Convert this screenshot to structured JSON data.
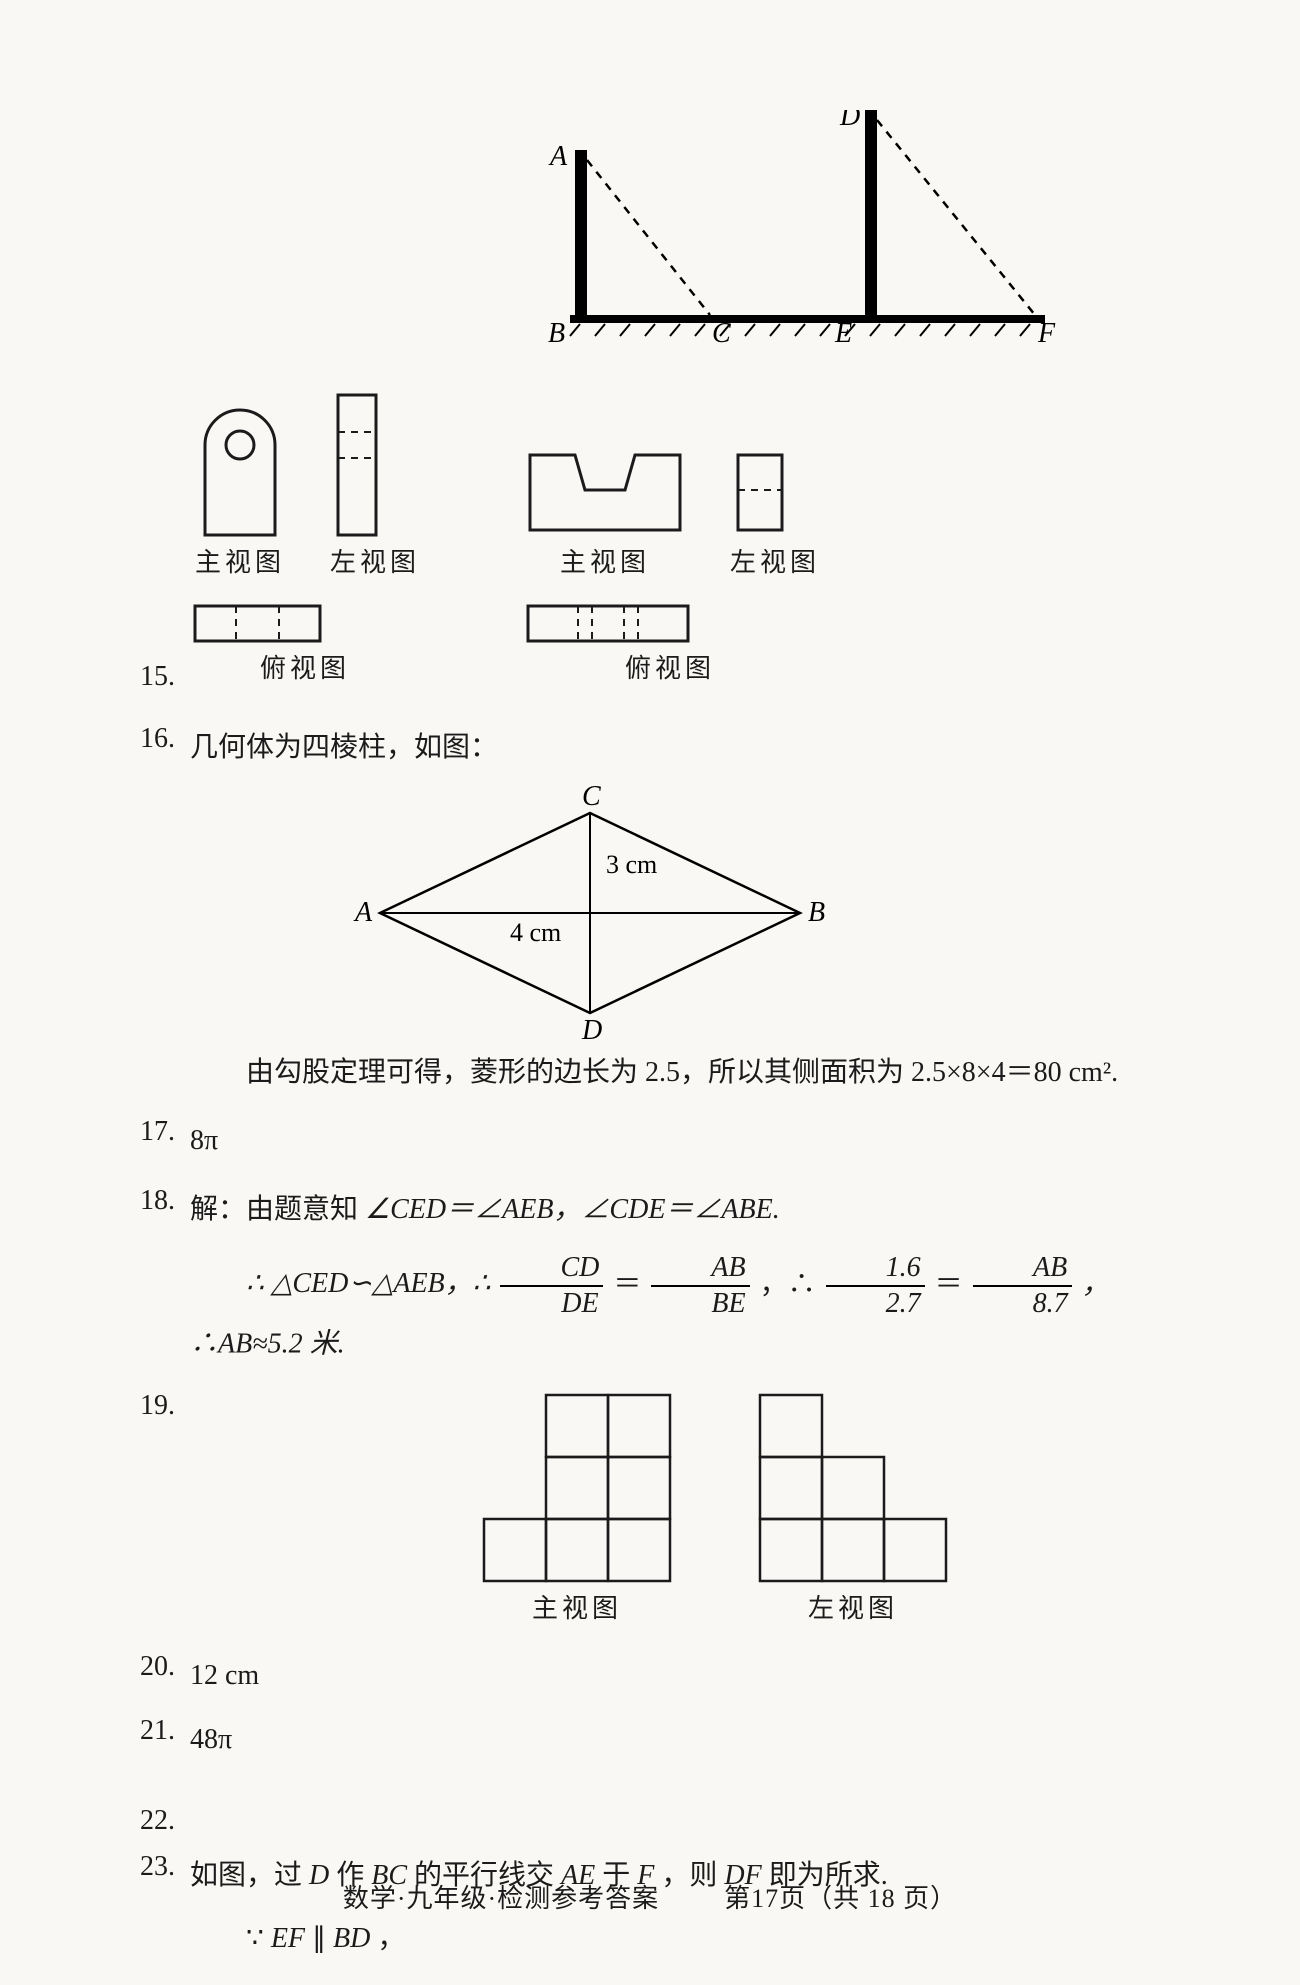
{
  "top_diagram": {
    "labels": {
      "A": "A",
      "B": "B",
      "C": "C",
      "D": "D",
      "E": "E",
      "F": "F"
    },
    "stroke": "#000000",
    "thick": 10,
    "dash": "8,7",
    "ground_hatches": 18
  },
  "q15": {
    "num": "15.",
    "labels": {
      "front": "主视图",
      "left": "左视图",
      "top": "俯视图"
    },
    "stroke": "#1b1b1b",
    "dash": "7,6"
  },
  "q16": {
    "num": "16.",
    "text_intro": "几何体为四棱柱，如图：",
    "rhombus": {
      "labels": {
        "A": "A",
        "B": "B",
        "C": "C",
        "D": "D"
      },
      "diag_h_label": "4 cm",
      "diag_v_label": "3 cm",
      "stroke": "#000000"
    },
    "text_after": "由勾股定理可得，菱形的边长为 2.5，所以其侧面积为 2.5×8×4＝80 cm²."
  },
  "q17": {
    "num": "17.",
    "text": "8π"
  },
  "q18": {
    "num": "18.",
    "line1_pre": "解：由题意知",
    "eq1": "∠CED＝∠AEB，∠CDE＝∠ABE.",
    "therefore": "∴ △CED∽△AEB，∴",
    "frac1": {
      "num": "CD",
      "den": "DE"
    },
    "frac2": {
      "num": "AB",
      "den": "BE"
    },
    "frac3": {
      "num": "1.6",
      "den": "2.7"
    },
    "frac4": {
      "num": "AB",
      "den": "8.7"
    },
    "tail": "，∴AB≈5.2 米."
  },
  "q19": {
    "num": "19.",
    "labels": {
      "front": "主视图",
      "left": "左视图"
    },
    "cell": 62,
    "stroke": "#1b1b1b",
    "front_cells": [
      [
        0,
        1
      ],
      [
        0,
        2
      ],
      [
        1,
        1
      ],
      [
        1,
        2
      ],
      [
        2,
        0
      ],
      [
        2,
        1
      ],
      [
        2,
        2
      ]
    ],
    "left_cells": [
      [
        0,
        0
      ],
      [
        1,
        0
      ],
      [
        1,
        1
      ],
      [
        2,
        0
      ],
      [
        2,
        1
      ],
      [
        2,
        2
      ]
    ],
    "front_cols": 3,
    "front_rows": 3,
    "left_cols": 3,
    "left_rows": 3
  },
  "q20": {
    "num": "20.",
    "text": "12 cm"
  },
  "q21": {
    "num": "21.",
    "text": "48π"
  },
  "q22": {
    "num": "22."
  },
  "q23": {
    "num": "23.",
    "line1_pre": "如图，过 ",
    "line1_mid1": "D",
    "line1_mid2": " 作 ",
    "line1_mid3": "BC",
    "line1_mid4": " 的平行线交 ",
    "line1_mid5": "AE",
    "line1_mid6": " 于 ",
    "line1_mid7": "F",
    "line1_mid8": "，则 ",
    "line1_mid9": "DF",
    "line1_tail": " 即为所求.",
    "line2_pre": "∵",
    "line2_ef": "EF",
    "line2_par": "∥",
    "line2_bd": "BD",
    "line2_tail": "，"
  },
  "footer": {
    "left": "数学·九年级·检测参考答案",
    "right": "第17页（共 18 页）"
  }
}
